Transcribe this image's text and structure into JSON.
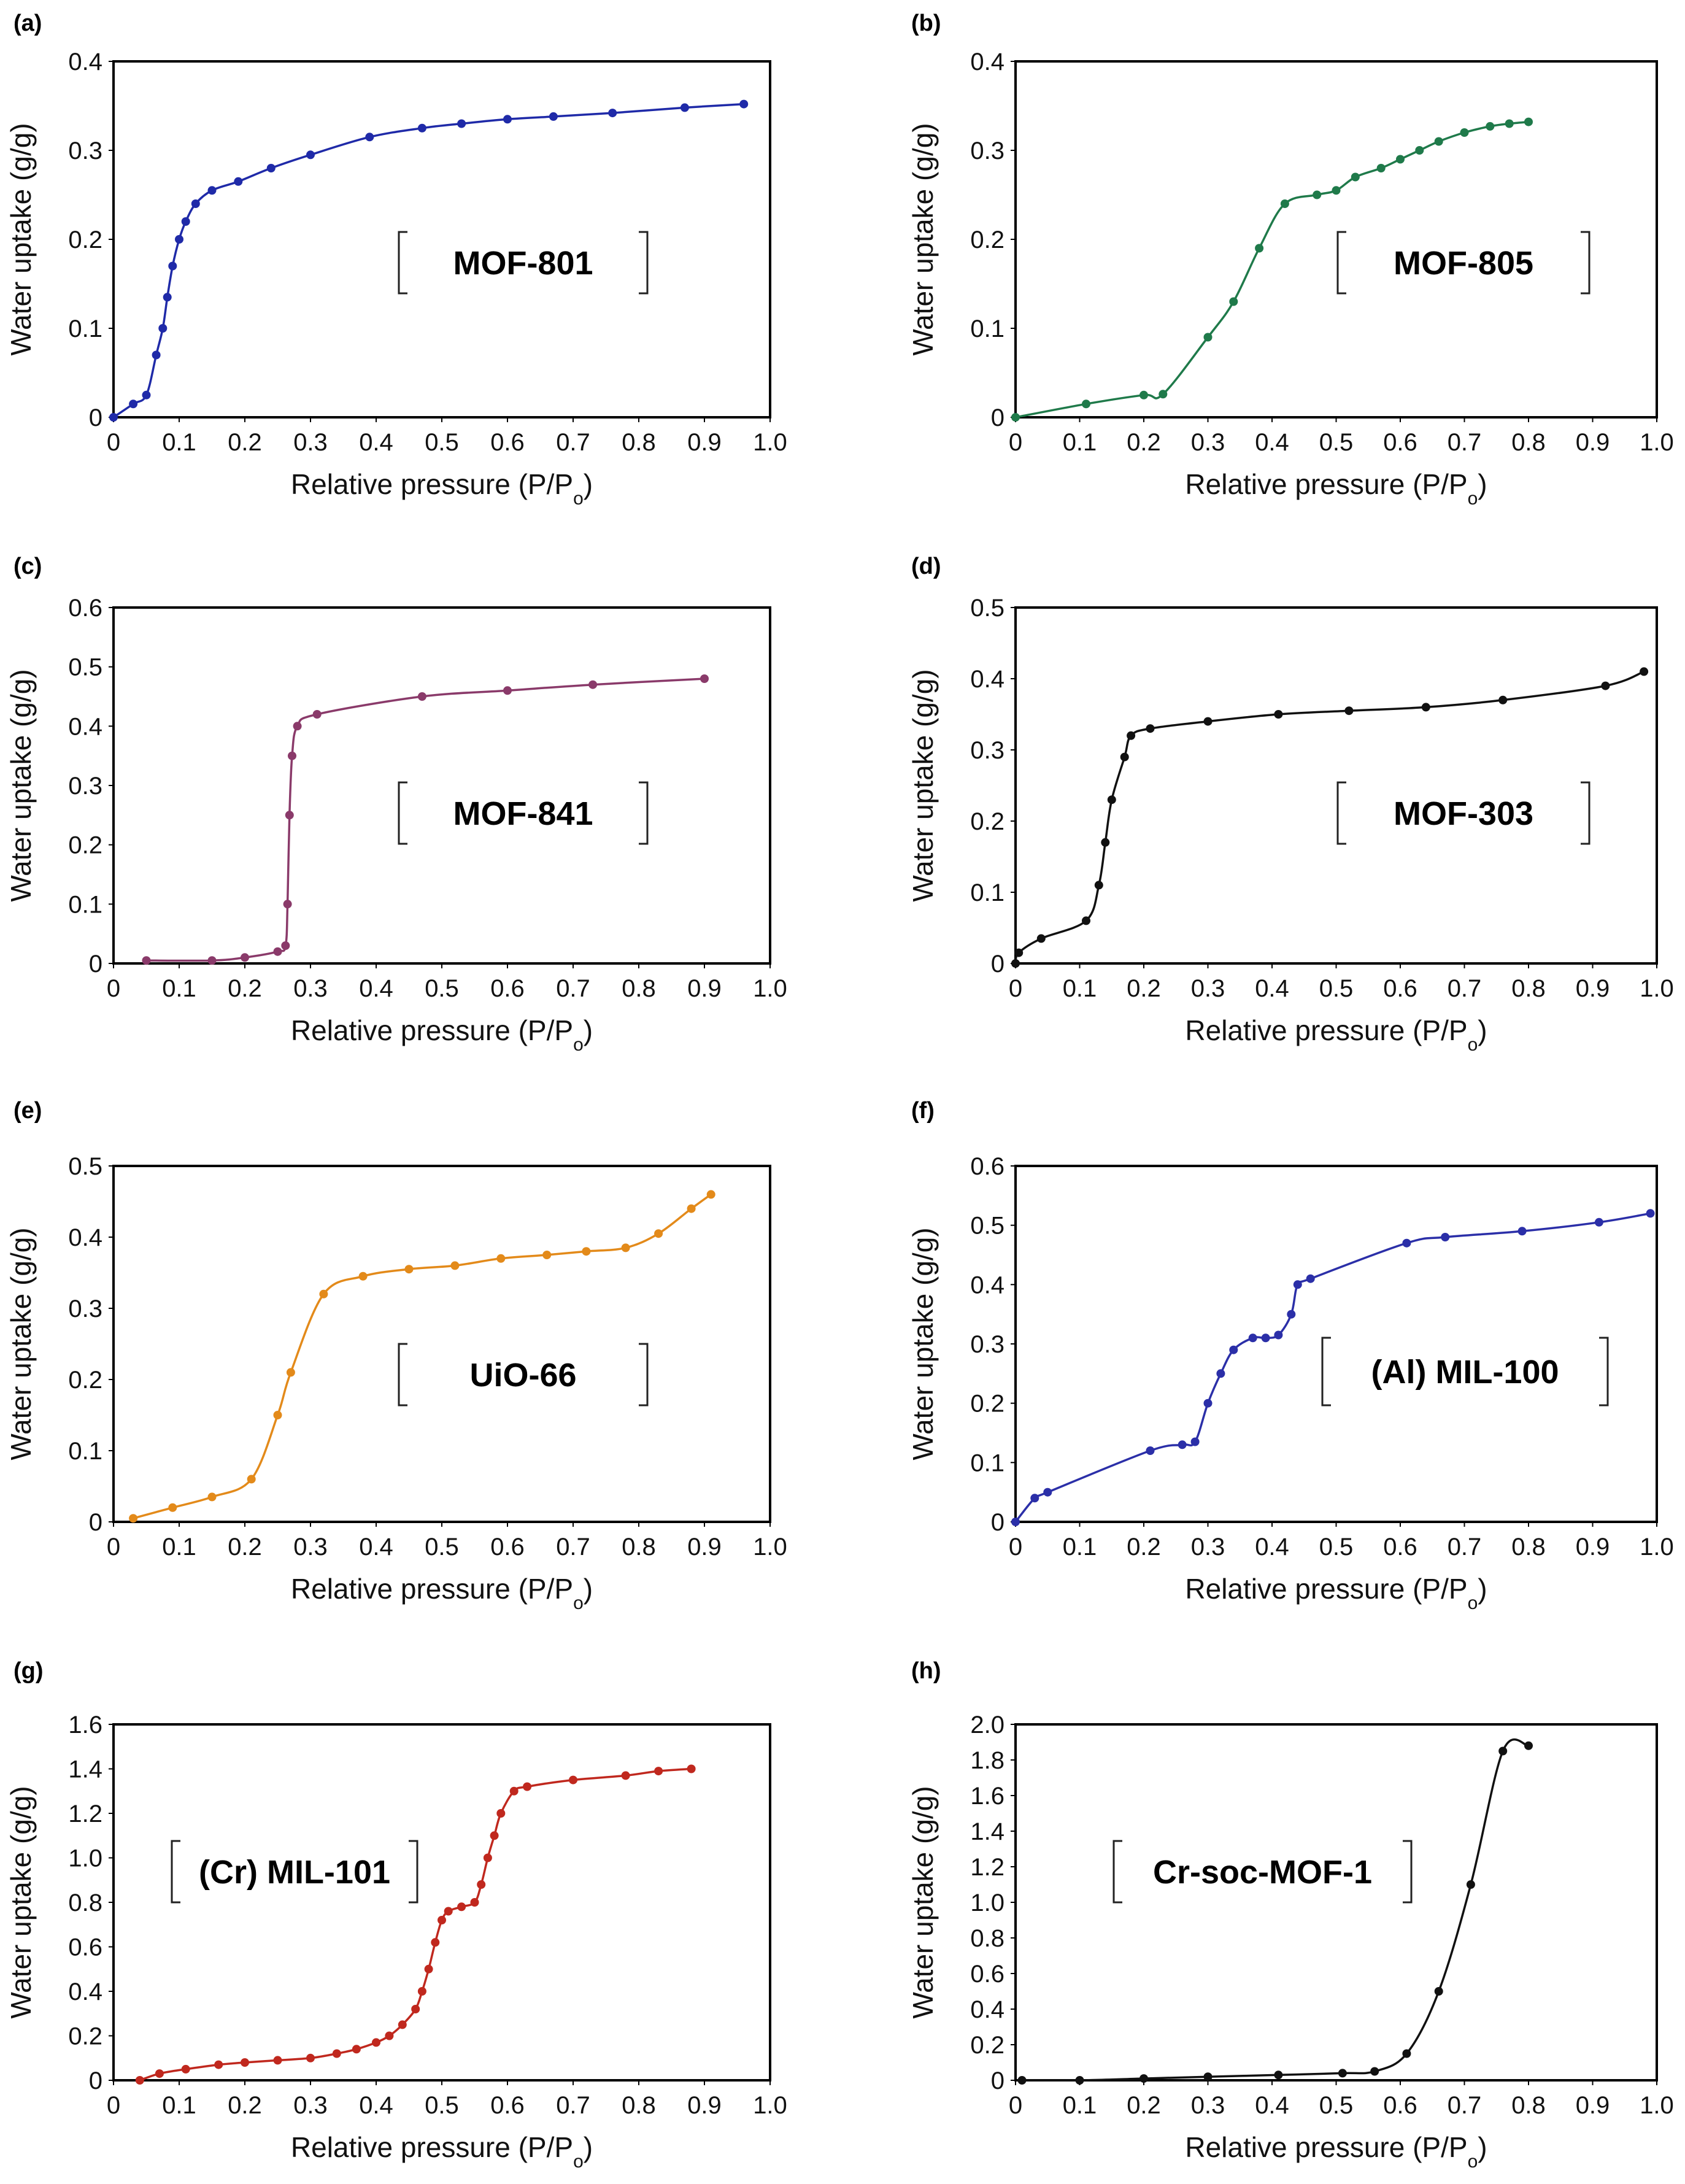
{
  "chart_data": [
    {
      "type": "line",
      "panel": "(a)",
      "material": "MOF-801",
      "color": "#1f2aa8",
      "xlabel": "Relative pressure (P/Po)",
      "ylabel": "Water uptake (g/g)",
      "xlim": [
        0,
        1.0
      ],
      "ylim": [
        0,
        0.4
      ],
      "xticks": [
        "0",
        "0.1",
        "0.2",
        "0.3",
        "0.4",
        "0.5",
        "0.6",
        "0.7",
        "0.8",
        "0.9",
        "1.0"
      ],
      "yticks": [
        "0",
        "0.1",
        "0.2",
        "0.3",
        "0.4"
      ],
      "x": [
        0,
        0.03,
        0.05,
        0.065,
        0.075,
        0.082,
        0.09,
        0.1,
        0.11,
        0.125,
        0.15,
        0.19,
        0.24,
        0.3,
        0.39,
        0.47,
        0.53,
        0.6,
        0.67,
        0.76,
        0.87,
        0.96
      ],
      "y": [
        0,
        0.015,
        0.025,
        0.07,
        0.1,
        0.135,
        0.17,
        0.2,
        0.22,
        0.24,
        0.255,
        0.265,
        0.28,
        0.295,
        0.315,
        0.325,
        0.33,
        0.335,
        0.338,
        0.342,
        0.348,
        0.352
      ]
    },
    {
      "type": "line",
      "panel": "(b)",
      "material": "MOF-805",
      "color": "#1f7a4a",
      "xlabel": "Relative pressure (P/Po)",
      "ylabel": "Water uptake (g/g)",
      "xlim": [
        0,
        1.0
      ],
      "ylim": [
        0,
        0.4
      ],
      "xticks": [
        "0",
        "0.1",
        "0.2",
        "0.3",
        "0.4",
        "0.5",
        "0.6",
        "0.7",
        "0.8",
        "0.9",
        "1.0"
      ],
      "yticks": [
        "0",
        "0.1",
        "0.2",
        "0.3",
        "0.4"
      ],
      "x": [
        0,
        0.11,
        0.2,
        0.23,
        0.3,
        0.34,
        0.38,
        0.42,
        0.47,
        0.5,
        0.53,
        0.57,
        0.6,
        0.63,
        0.66,
        0.7,
        0.74,
        0.77,
        0.8
      ],
      "y": [
        0,
        0.015,
        0.025,
        0.026,
        0.09,
        0.13,
        0.19,
        0.24,
        0.25,
        0.255,
        0.27,
        0.28,
        0.29,
        0.3,
        0.31,
        0.32,
        0.327,
        0.33,
        0.332
      ]
    },
    {
      "type": "line",
      "panel": "(c)",
      "material": "MOF-841",
      "color": "#8a3a6a",
      "xlabel": "Relative pressure (P/Po)",
      "ylabel": "Water uptake (g/g)",
      "xlim": [
        0,
        1.0
      ],
      "ylim": [
        0,
        0.6
      ],
      "xticks": [
        "0",
        "0.1",
        "0.2",
        "0.3",
        "0.4",
        "0.5",
        "0.6",
        "0.7",
        "0.8",
        "0.9",
        "1.0"
      ],
      "yticks": [
        "0",
        "0.1",
        "0.2",
        "0.3",
        "0.4",
        "0.5",
        "0.6"
      ],
      "x": [
        0.05,
        0.15,
        0.2,
        0.25,
        0.262,
        0.265,
        0.268,
        0.272,
        0.28,
        0.31,
        0.47,
        0.6,
        0.73,
        0.9
      ],
      "y": [
        0.005,
        0.005,
        0.01,
        0.02,
        0.03,
        0.1,
        0.25,
        0.35,
        0.4,
        0.42,
        0.45,
        0.46,
        0.47,
        0.48
      ]
    },
    {
      "type": "line",
      "panel": "(d)",
      "material": "MOF-303",
      "color": "#111111",
      "xlabel": "Relative pressure (P/Po)",
      "ylabel": "Water uptake (g/g)",
      "xlim": [
        0,
        1.0
      ],
      "ylim": [
        0,
        0.5
      ],
      "xticks": [
        "0",
        "0.1",
        "0.2",
        "0.3",
        "0.4",
        "0.5",
        "0.6",
        "0.7",
        "0.8",
        "0.9",
        "1.0"
      ],
      "yticks": [
        "0",
        "0.1",
        "0.2",
        "0.3",
        "0.4",
        "0.5"
      ],
      "x": [
        0,
        0.005,
        0.04,
        0.11,
        0.13,
        0.14,
        0.15,
        0.17,
        0.18,
        0.21,
        0.3,
        0.41,
        0.52,
        0.64,
        0.76,
        0.92,
        0.98
      ],
      "y": [
        0,
        0.015,
        0.035,
        0.06,
        0.11,
        0.17,
        0.23,
        0.29,
        0.32,
        0.33,
        0.34,
        0.35,
        0.355,
        0.36,
        0.37,
        0.39,
        0.41
      ]
    },
    {
      "type": "line",
      "panel": "(e)",
      "material": "UiO-66",
      "color": "#e38a1a",
      "xlabel": "Relative pressure (P/Po)",
      "ylabel": "Water uptake (g/g)",
      "xlim": [
        0,
        1.0
      ],
      "ylim": [
        0,
        0.5
      ],
      "xticks": [
        "0",
        "0.1",
        "0.2",
        "0.3",
        "0.4",
        "0.5",
        "0.6",
        "0.7",
        "0.8",
        "0.9",
        "1.0"
      ],
      "yticks": [
        "0",
        "0.1",
        "0.2",
        "0.3",
        "0.4",
        "0.5"
      ],
      "x": [
        0.03,
        0.09,
        0.15,
        0.21,
        0.25,
        0.27,
        0.32,
        0.38,
        0.45,
        0.52,
        0.59,
        0.66,
        0.72,
        0.78,
        0.83,
        0.88,
        0.91
      ],
      "y": [
        0.005,
        0.02,
        0.035,
        0.06,
        0.15,
        0.21,
        0.32,
        0.345,
        0.355,
        0.36,
        0.37,
        0.375,
        0.38,
        0.385,
        0.405,
        0.44,
        0.46
      ]
    },
    {
      "type": "line",
      "panel": "(f)",
      "material": "(Al) MIL-100",
      "color": "#2b2fa8",
      "xlabel": "Relative pressure (P/Po)",
      "ylabel": "Water uptake (g/g)",
      "xlim": [
        0,
        1.0
      ],
      "ylim": [
        0,
        0.6
      ],
      "xticks": [
        "0",
        "0.1",
        "0.2",
        "0.3",
        "0.4",
        "0.5",
        "0.6",
        "0.7",
        "0.8",
        "0.9",
        "1.0"
      ],
      "yticks": [
        "0",
        "0.1",
        "0.2",
        "0.3",
        "0.4",
        "0.5",
        "0.6"
      ],
      "x": [
        0,
        0.03,
        0.05,
        0.21,
        0.26,
        0.28,
        0.3,
        0.32,
        0.34,
        0.37,
        0.39,
        0.41,
        0.43,
        0.44,
        0.46,
        0.61,
        0.67,
        0.79,
        0.91,
        0.99
      ],
      "y": [
        0,
        0.04,
        0.05,
        0.12,
        0.13,
        0.135,
        0.2,
        0.25,
        0.29,
        0.31,
        0.31,
        0.315,
        0.35,
        0.4,
        0.41,
        0.47,
        0.48,
        0.49,
        0.505,
        0.52
      ]
    },
    {
      "type": "line",
      "panel": "(g)",
      "material": "(Cr) MIL-101",
      "color": "#c0281e",
      "xlabel": "Relative pressure (P/Po)",
      "ylabel": "Water uptake (g/g)",
      "xlim": [
        0,
        1.0
      ],
      "ylim": [
        0,
        1.6
      ],
      "xticks": [
        "0",
        "0.1",
        "0.2",
        "0.3",
        "0.4",
        "0.5",
        "0.6",
        "0.7",
        "0.8",
        "0.9",
        "1.0"
      ],
      "yticks": [
        "0",
        "0.2",
        "0.4",
        "0.6",
        "0.8",
        "1.0",
        "1.2",
        "1.4",
        "1.6"
      ],
      "x": [
        0.04,
        0.07,
        0.11,
        0.16,
        0.2,
        0.25,
        0.3,
        0.34,
        0.37,
        0.4,
        0.42,
        0.44,
        0.46,
        0.47,
        0.48,
        0.49,
        0.5,
        0.51,
        0.53,
        0.55,
        0.56,
        0.57,
        0.58,
        0.59,
        0.61,
        0.63,
        0.7,
        0.78,
        0.83,
        0.88
      ],
      "y": [
        0.0,
        0.03,
        0.05,
        0.07,
        0.08,
        0.09,
        0.1,
        0.12,
        0.14,
        0.17,
        0.2,
        0.25,
        0.32,
        0.4,
        0.5,
        0.62,
        0.72,
        0.76,
        0.78,
        0.8,
        0.88,
        1.0,
        1.1,
        1.2,
        1.3,
        1.32,
        1.35,
        1.37,
        1.39,
        1.4
      ]
    },
    {
      "type": "line",
      "panel": "(h)",
      "material": "Cr-soc-MOF-1",
      "color": "#111111",
      "xlabel": "Relative pressure (P/Po)",
      "ylabel": "Water uptake (g/g)",
      "xlim": [
        0,
        1.0
      ],
      "ylim": [
        0,
        2.0
      ],
      "xticks": [
        "0",
        "0.1",
        "0.2",
        "0.3",
        "0.4",
        "0.5",
        "0.6",
        "0.7",
        "0.8",
        "0.9",
        "1.0"
      ],
      "yticks": [
        "0",
        "0.2",
        "0.4",
        "0.6",
        "0.8",
        "1.0",
        "1.2",
        "1.4",
        "1.6",
        "1.8",
        "2.0"
      ],
      "x": [
        0.01,
        0.1,
        0.2,
        0.3,
        0.41,
        0.51,
        0.56,
        0.61,
        0.66,
        0.71,
        0.76,
        0.8
      ],
      "y": [
        0.0,
        0.0,
        0.01,
        0.02,
        0.03,
        0.04,
        0.05,
        0.15,
        0.5,
        1.1,
        1.85,
        1.88
      ]
    }
  ]
}
